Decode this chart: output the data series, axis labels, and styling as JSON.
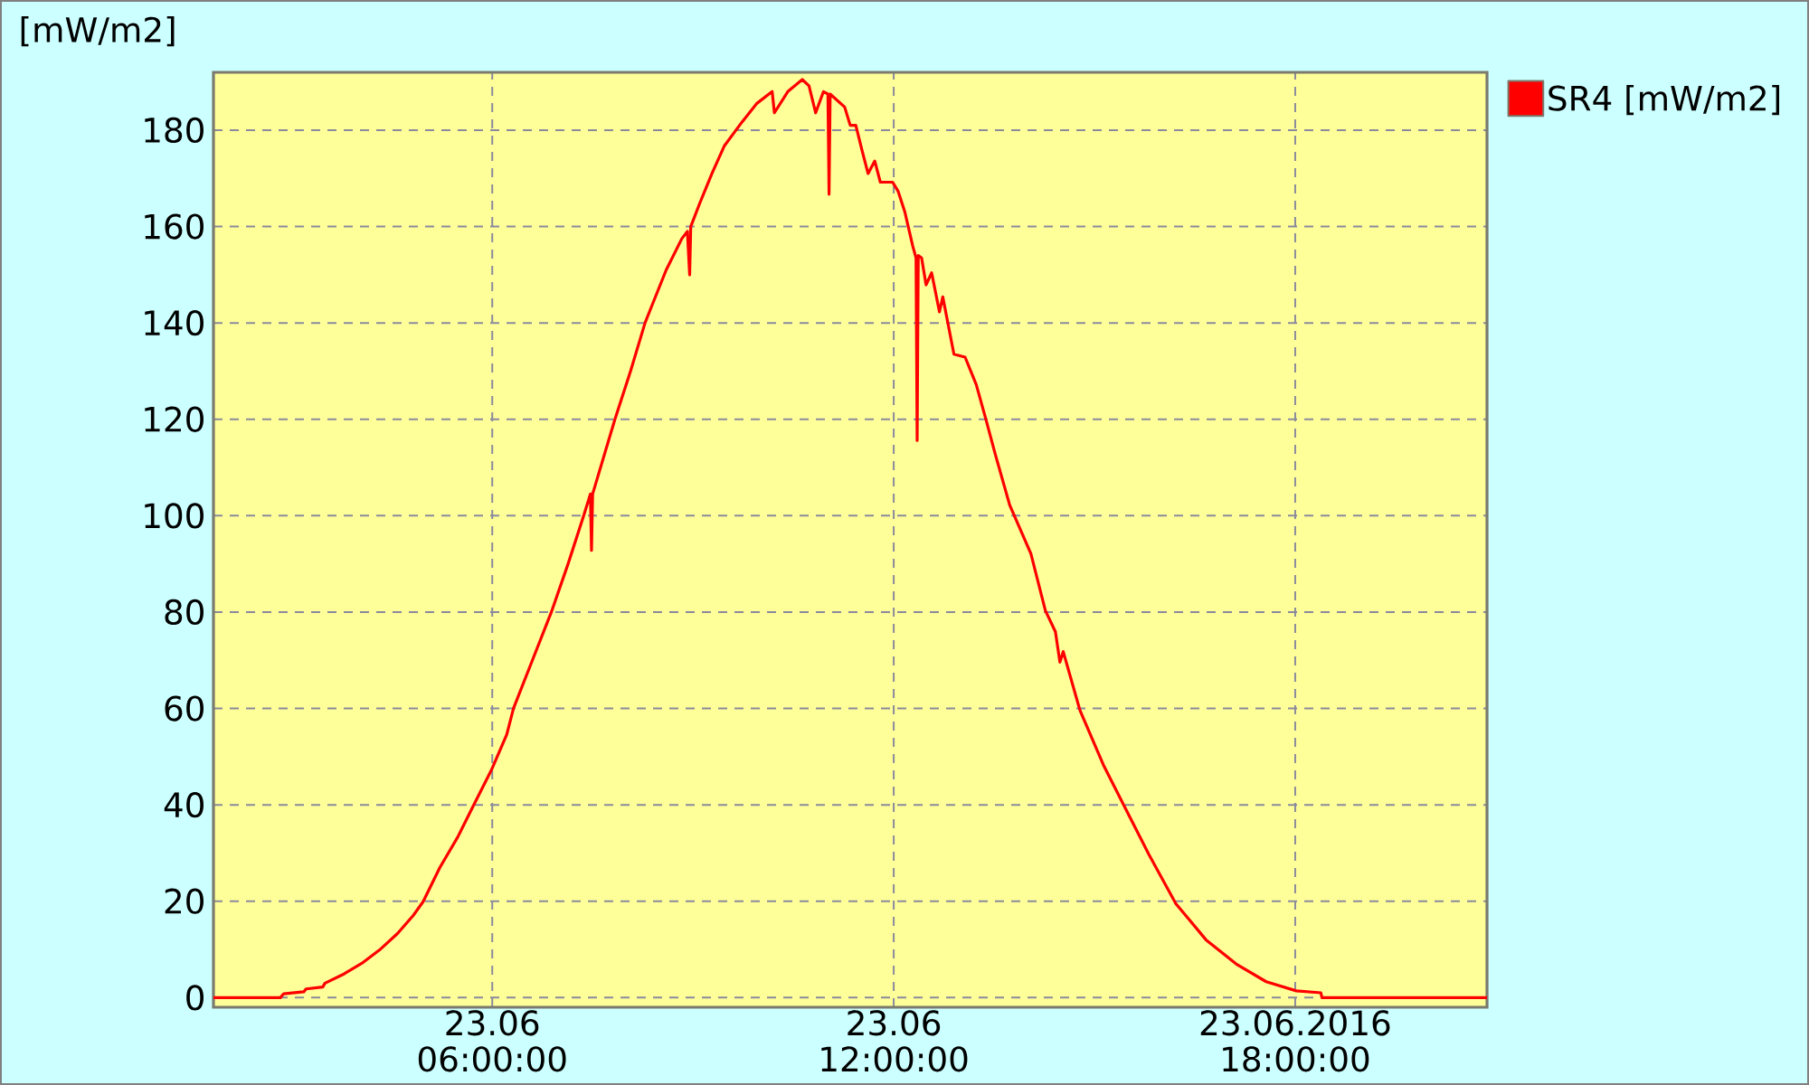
{
  "chart_data": {
    "type": "line",
    "ylabel": "[mW/m2]",
    "x": [
      "2016-06-23T01:50",
      "2016-06-23T02:50",
      "2016-06-23T02:53",
      "2016-06-23T03:11",
      "2016-06-23T03:13",
      "2016-06-23T03:28",
      "2016-06-23T03:30",
      "2016-06-23T03:47",
      "2016-06-23T04:03",
      "2016-06-23T04:19",
      "2016-06-23T04:35",
      "2016-06-23T04:49",
      "2016-06-23T04:58",
      "2016-06-23T05:13",
      "2016-06-23T05:29",
      "2016-06-23T05:43",
      "2016-06-23T05:59",
      "2016-06-23T06:13",
      "2016-06-23T06:19",
      "2016-06-23T06:36",
      "2016-06-23T06:53",
      "2016-06-23T07:08",
      "2016-06-23T07:22",
      "2016-06-23T07:28",
      "2016-06-23T07:29",
      "2016-06-23T07:30",
      "2016-06-23T07:50",
      "2016-06-23T08:04",
      "2016-06-23T08:17",
      "2016-06-23T08:23",
      "2016-06-23T08:36",
      "2016-06-23T08:50",
      "2016-06-23T08:55",
      "2016-06-23T08:57",
      "2016-06-23T08:58",
      "2016-06-23T09:06",
      "2016-06-23T09:17",
      "2016-06-23T09:28",
      "2016-06-23T09:44",
      "2016-06-23T09:57",
      "2016-06-23T10:11",
      "2016-06-23T10:13",
      "2016-06-23T10:25",
      "2016-06-23T10:38",
      "2016-06-23T10:44",
      "2016-06-23T10:50",
      "2016-06-23T10:57",
      "2016-06-23T11:01",
      "2016-06-23T11:02",
      "2016-06-23T11:03",
      "2016-06-23T11:16",
      "2016-06-23T11:21",
      "2016-06-23T11:26",
      "2016-06-23T11:32",
      "2016-06-23T11:37",
      "2016-06-23T11:43",
      "2016-06-23T11:48",
      "2016-06-23T11:59",
      "2016-06-23T12:04",
      "2016-06-23T12:10",
      "2016-06-23T12:17",
      "2016-06-23T12:20",
      "2016-06-23T12:21",
      "2016-06-23T12:22",
      "2016-06-23T12:25",
      "2016-06-23T12:29",
      "2016-06-23T12:34",
      "2016-06-23T12:41",
      "2016-06-23T12:44",
      "2016-06-23T12:54",
      "2016-06-23T13:04",
      "2016-06-23T13:14",
      "2016-06-23T13:23",
      "2016-06-23T13:31",
      "2016-06-23T13:44",
      "2016-06-23T14:03",
      "2016-06-23T14:16",
      "2016-06-23T14:25",
      "2016-06-23T14:29",
      "2016-06-23T14:32",
      "2016-06-23T14:47",
      "2016-06-23T15:08",
      "2016-06-23T15:27",
      "2016-06-23T15:49",
      "2016-06-23T16:13",
      "2016-06-23T16:40",
      "2016-06-23T17:07",
      "2016-06-23T17:34",
      "2016-06-23T18:01",
      "2016-06-23T18:23",
      "2016-06-23T18:24",
      "2016-06-23T20:52"
    ],
    "series": [
      {
        "name": "SR4 [mW/m2]",
        "color": "#ff0000",
        "values": [
          0,
          0,
          0.8,
          1.2,
          1.8,
          2.2,
          3.0,
          4.9,
          7.1,
          9.9,
          13.3,
          17.0,
          19.9,
          27.0,
          33.3,
          39.8,
          47.1,
          54.6,
          60.0,
          70.0,
          80.0,
          90.0,
          100.0,
          104.5,
          92.8,
          104.5,
          120.0,
          130.0,
          140.0,
          143.5,
          151.0,
          157.5,
          159.0,
          150.0,
          160.0,
          164.8,
          171.0,
          176.7,
          181.7,
          185.5,
          188.0,
          183.6,
          188.0,
          190.5,
          189.2,
          183.6,
          188.0,
          187.5,
          166.7,
          187.5,
          184.8,
          181.0,
          181.0,
          175.4,
          171.0,
          173.6,
          169.2,
          169.2,
          167.3,
          163.0,
          156.0,
          153.5,
          115.6,
          154.0,
          153.5,
          147.9,
          150.4,
          142.3,
          145.4,
          133.5,
          132.9,
          127.2,
          119.7,
          112.8,
          102.2,
          92.1,
          80.3,
          75.9,
          69.6,
          71.8,
          59.6,
          48.3,
          39.6,
          29.6,
          19.5,
          12.0,
          7.0,
          3.3,
          1.4,
          1.0,
          0,
          0
        ]
      }
    ],
    "xlim": [
      "2016-06-23T01:50",
      "2016-06-23T20:52"
    ],
    "ylim": [
      -2,
      192
    ],
    "xticks": [
      {
        "value": "2016-06-23T06:00",
        "label": "23.06 06:00:00"
      },
      {
        "value": "2016-06-23T12:00",
        "label": "23.06 12:00:00"
      },
      {
        "value": "2016-06-23T18:00",
        "label": "23.06.2016 18:00:00"
      }
    ],
    "yticks": [
      0,
      20,
      40,
      60,
      80,
      100,
      120,
      140,
      160,
      180
    ],
    "grid": true,
    "legend": "top right"
  }
}
